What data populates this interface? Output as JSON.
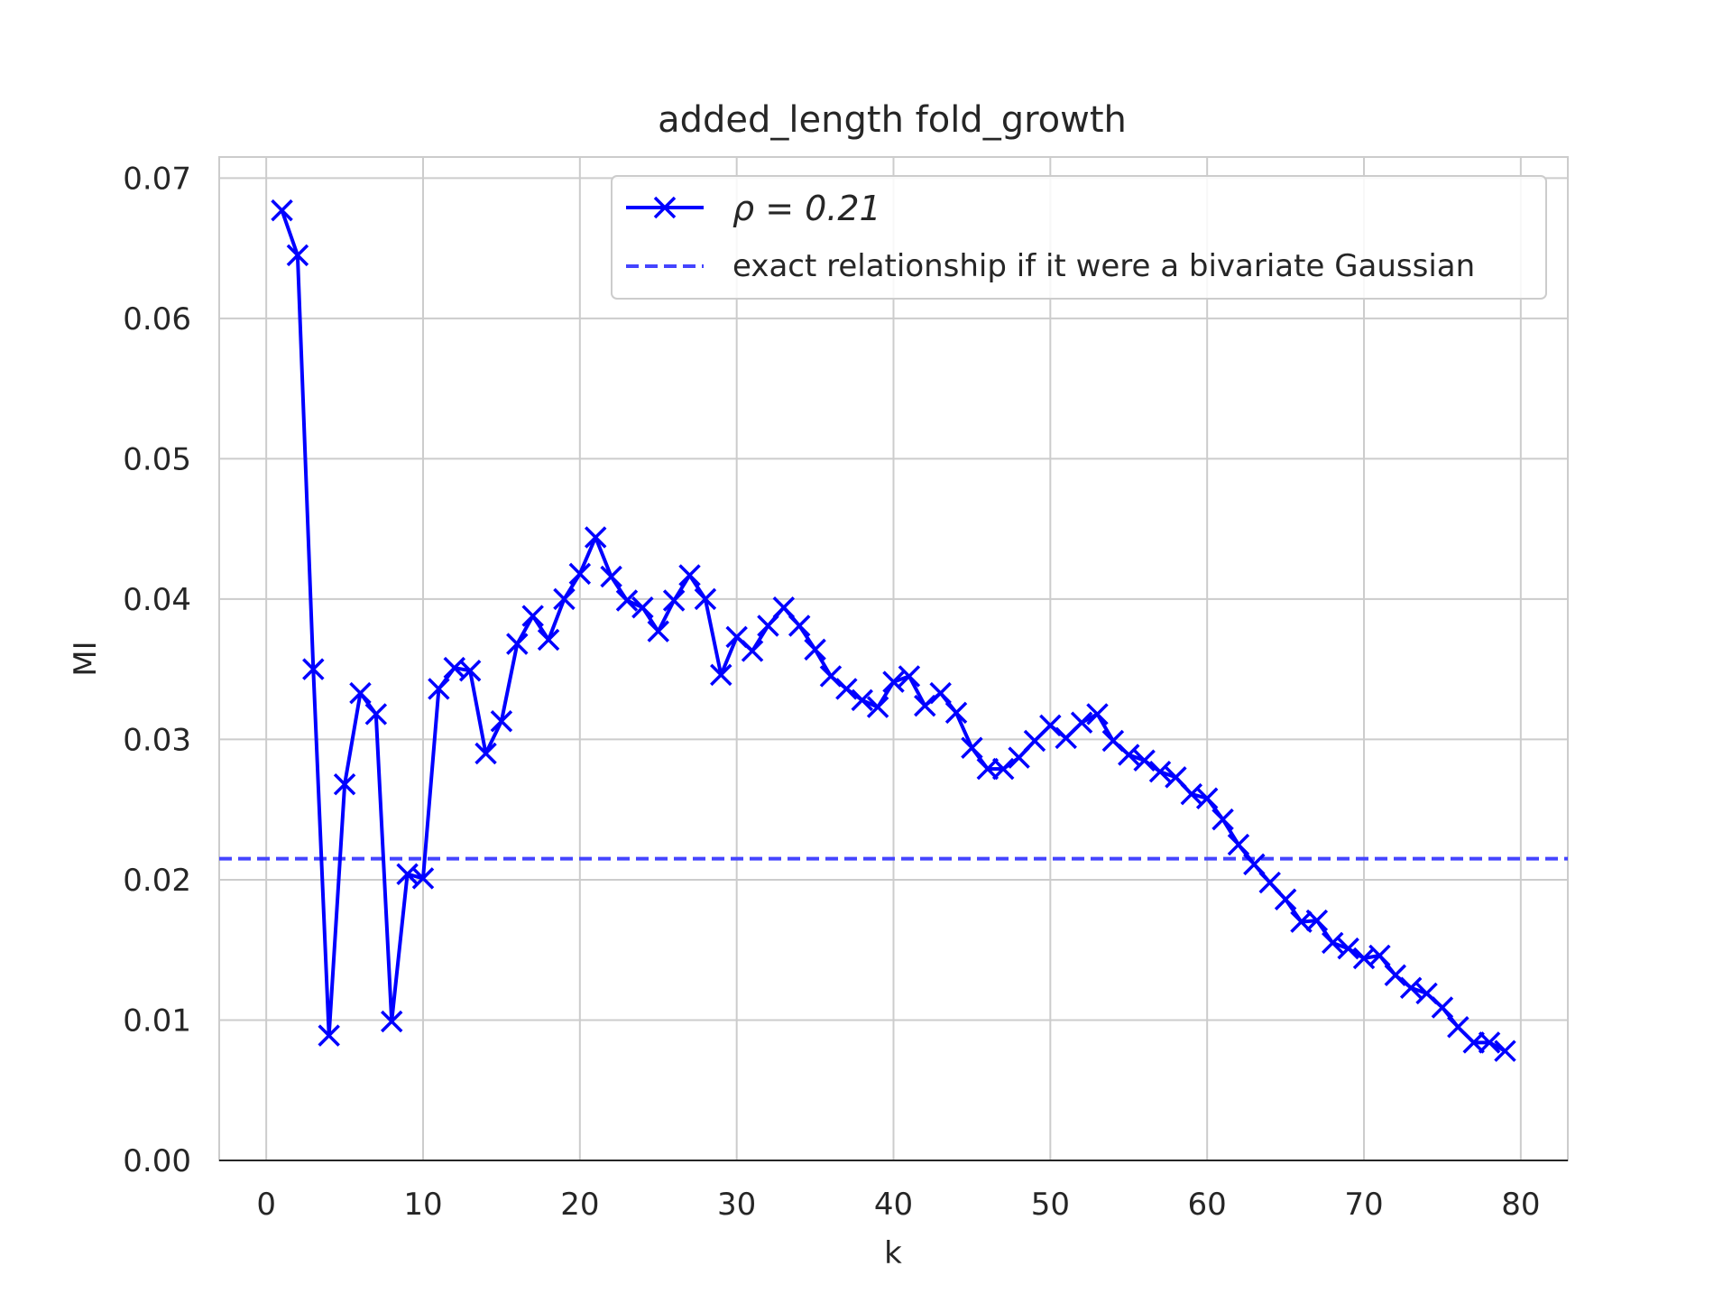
{
  "chart_data": {
    "type": "line",
    "title": "added_length fold_growth",
    "xlabel": "k",
    "ylabel": "MI",
    "xlim": [
      -3,
      83
    ],
    "ylim": [
      0,
      0.0715
    ],
    "x_ticks": [
      0,
      10,
      20,
      30,
      40,
      50,
      60,
      70,
      80
    ],
    "y_ticks": [
      0.0,
      0.01,
      0.02,
      0.03,
      0.04,
      0.05,
      0.06,
      0.07
    ],
    "x_tick_labels": [
      "0",
      "10",
      "20",
      "30",
      "40",
      "50",
      "60",
      "70",
      "80"
    ],
    "y_tick_labels": [
      "0.00",
      "0.01",
      "0.02",
      "0.03",
      "0.04",
      "0.05",
      "0.06",
      "0.07"
    ],
    "grid": true,
    "legend_position": "top-right",
    "series": [
      {
        "name": "ρ = 0.21",
        "style": "solid-with-x-markers",
        "color": "#0000ff",
        "x": [
          1,
          2,
          3,
          4,
          5,
          6,
          7,
          8,
          9,
          10,
          11,
          12,
          13,
          14,
          15,
          16,
          17,
          18,
          19,
          20,
          21,
          22,
          23,
          24,
          25,
          26,
          27,
          28,
          29,
          30,
          31,
          32,
          33,
          34,
          35,
          36,
          37,
          38,
          39,
          40,
          41,
          42,
          43,
          44,
          45,
          46,
          47,
          48,
          49,
          50,
          51,
          52,
          53,
          54,
          55,
          56,
          57,
          58,
          59,
          60,
          61,
          62,
          63,
          64,
          65,
          66,
          67,
          68,
          69,
          70,
          71,
          72,
          73,
          74,
          75,
          76,
          77,
          78,
          79
        ],
        "values": [
          0.0677,
          0.0645,
          0.035,
          0.0089,
          0.0268,
          0.0333,
          0.0318,
          0.0099,
          0.0204,
          0.0201,
          0.0336,
          0.0351,
          0.0349,
          0.029,
          0.0313,
          0.0368,
          0.0388,
          0.0371,
          0.04,
          0.0418,
          0.0444,
          0.0416,
          0.0399,
          0.0394,
          0.0377,
          0.0399,
          0.0417,
          0.04,
          0.0346,
          0.0373,
          0.0363,
          0.0381,
          0.0394,
          0.0381,
          0.0364,
          0.0345,
          0.0336,
          0.0328,
          0.0323,
          0.0341,
          0.0345,
          0.0324,
          0.0333,
          0.0319,
          0.0294,
          0.0279,
          0.0279,
          0.0287,
          0.0299,
          0.031,
          0.0301,
          0.0312,
          0.0318,
          0.0299,
          0.0289,
          0.0285,
          0.0277,
          0.0273,
          0.0261,
          0.0258,
          0.0243,
          0.0225,
          0.0211,
          0.0198,
          0.0186,
          0.017,
          0.0171,
          0.0155,
          0.0151,
          0.0144,
          0.0146,
          0.0132,
          0.0123,
          0.0119,
          0.0109,
          0.0095,
          0.0084,
          0.0084,
          0.0078
        ]
      },
      {
        "name": "exact relationship if it were a bivariate Gaussian",
        "style": "dashed",
        "color": "#4444ff",
        "value": 0.0215
      }
    ]
  }
}
